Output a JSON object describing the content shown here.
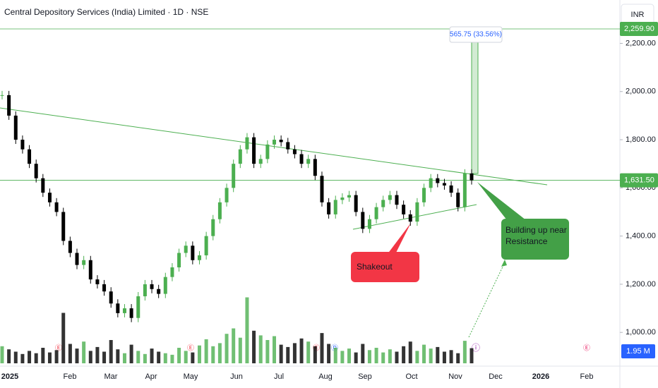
{
  "chart_data": {
    "type": "candlestick",
    "title": "Central Depository Services (India) Limited · 1D · NSE",
    "currency": "INR",
    "close": [
      1985,
      1900,
      1800,
      1760,
      1700,
      1640,
      1580,
      1540,
      1500,
      1380,
      1330,
      1280,
      1300,
      1220,
      1200,
      1170,
      1120,
      1080,
      1100,
      1060,
      1150,
      1200,
      1180,
      1160,
      1230,
      1270,
      1330,
      1360,
      1300,
      1320,
      1400,
      1470,
      1540,
      1600,
      1700,
      1760,
      1810,
      1700,
      1720,
      1780,
      1800,
      1790,
      1760,
      1740,
      1700,
      1720,
      1650,
      1540,
      1490,
      1550,
      1560,
      1570,
      1500,
      1430,
      1470,
      1520,
      1550,
      1570,
      1530,
      1490,
      1460,
      1540,
      1600,
      1640,
      1620,
      1610,
      1580,
      1520,
      1660,
      1631.5
    ],
    "volume": [
      2.2,
      1.8,
      1.5,
      1.2,
      1.6,
      1.3,
      2.0,
      1.4,
      1.7,
      6.5,
      2.5,
      1.9,
      2.8,
      1.6,
      2.1,
      1.5,
      3.0,
      1.8,
      1.3,
      2.4,
      1.6,
      1.2,
      1.9,
      1.5,
      1.3,
      1.1,
      2.0,
      1.6,
      1.4,
      2.3,
      3.1,
      2.2,
      2.6,
      3.8,
      4.5,
      3.3,
      8.5,
      4.2,
      3.6,
      3.0,
      3.5,
      2.4,
      2.1,
      2.6,
      3.2,
      2.8,
      2.2,
      3.9,
      2.5,
      2.0,
      1.6,
      1.9,
      1.4,
      2.5,
      1.7,
      2.0,
      1.4,
      1.8,
      1.5,
      2.2,
      2.8,
      1.6,
      2.4,
      1.9,
      2.1,
      1.5,
      1.7,
      1.3,
      2.9,
      1.95
    ],
    "volume_label": "1.95 M",
    "x_labels": [
      "2025",
      "Feb",
      "Mar",
      "Apr",
      "May",
      "Jun",
      "Jul",
      "Aug",
      "Sep",
      "Oct",
      "Nov",
      "Dec",
      "2026",
      "Feb"
    ],
    "ylim": [
      860,
      2380
    ],
    "yticks": [
      {
        "value": 1000,
        "label": "1,000.00"
      },
      {
        "value": 1200,
        "label": "1,200.00"
      },
      {
        "value": 1400,
        "label": "1,400.00"
      },
      {
        "value": 1600,
        "label": "1,600.00"
      },
      {
        "value": 1800,
        "label": "1,800.00"
      },
      {
        "value": 2000,
        "label": "2,000.00"
      },
      {
        "value": 2200,
        "label": "2,200.00"
      }
    ],
    "price_lines": [
      {
        "value": 2259.9,
        "label": "2,259.90"
      },
      {
        "value": 1631.5,
        "label": "1,631.50"
      }
    ],
    "annotations": {
      "measure": "565.75 (33.56%)",
      "shakeout": "Shakeout",
      "building": "Building up near Resistance"
    },
    "colors": {
      "up": "#4caf50",
      "down": "#000000",
      "volume_up": "#4caf50",
      "volume_down": "#000000"
    }
  }
}
